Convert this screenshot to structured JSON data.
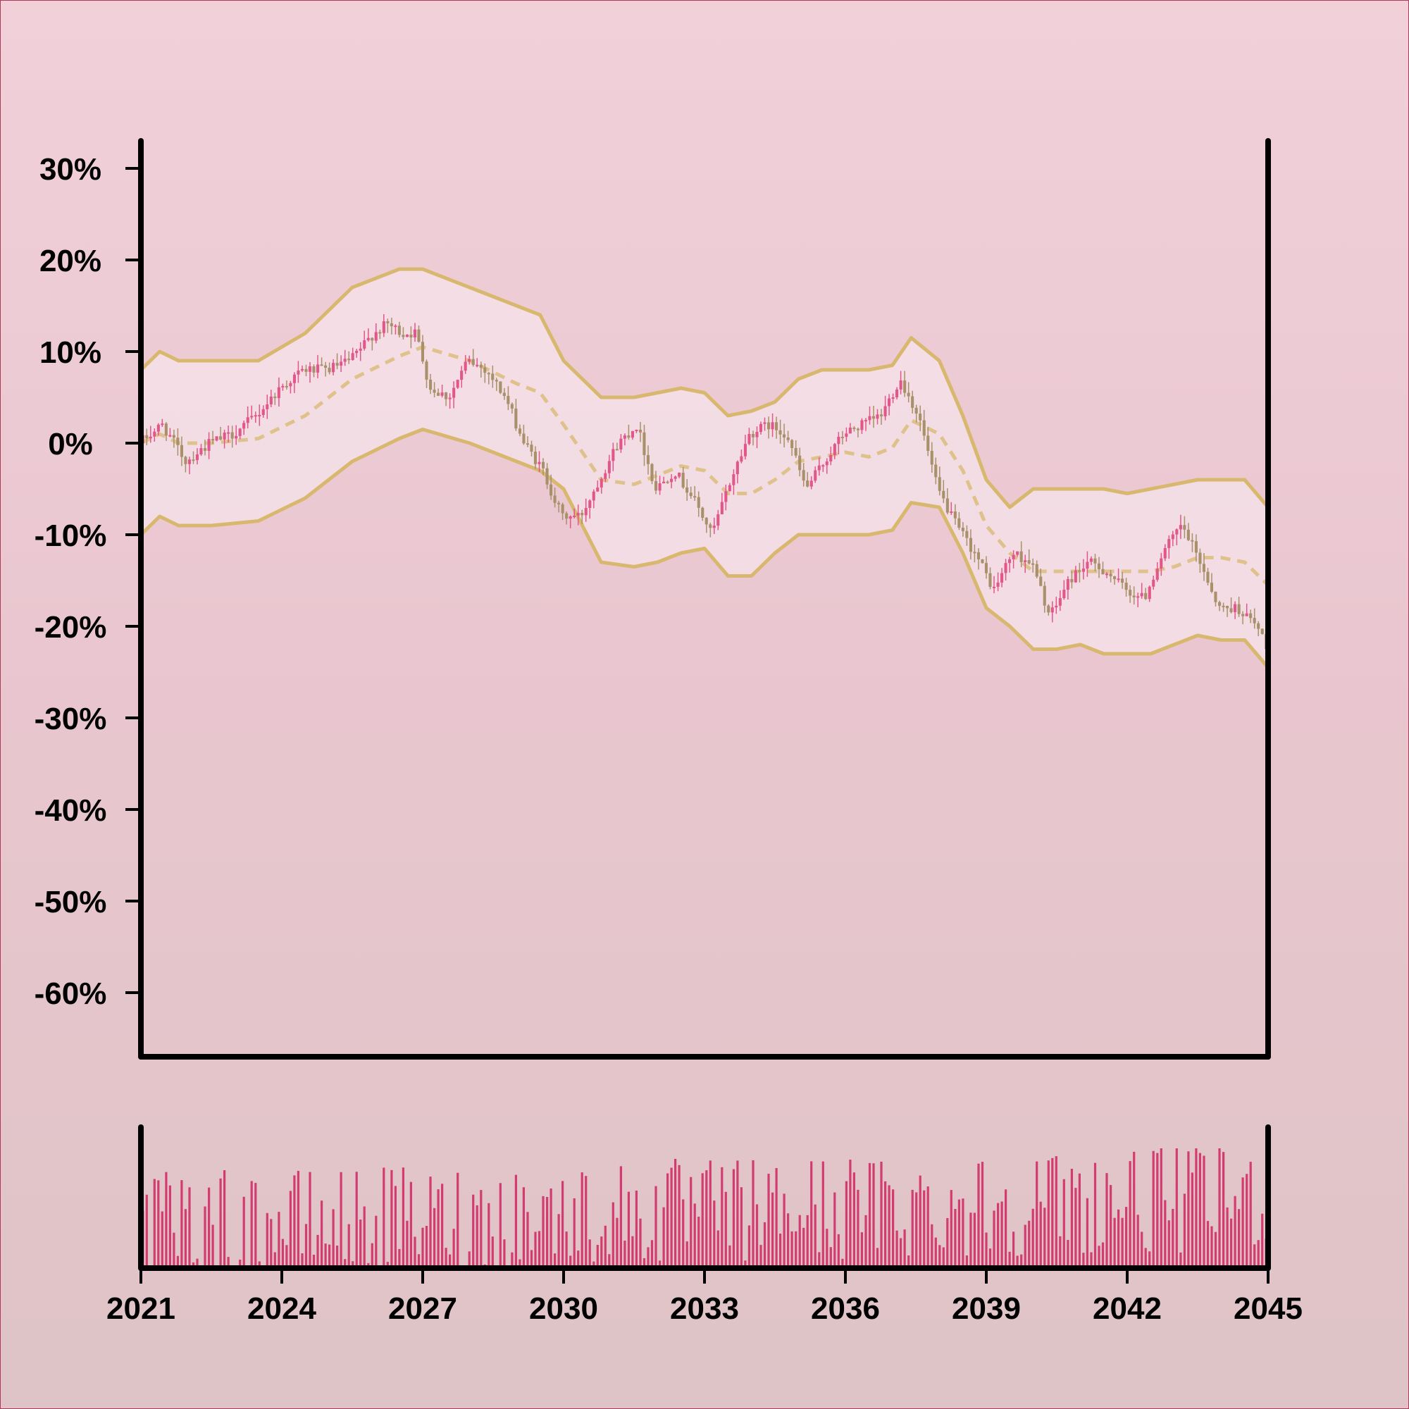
{
  "chart_data": {
    "type": "candlestick",
    "title": "",
    "xlabel": "",
    "ylabel": "",
    "x_range": [
      2021,
      2045
    ],
    "ylim": [
      -0.67,
      0.33
    ],
    "y_ticks": [
      0.3,
      0.2,
      0.1,
      0.0,
      -0.1,
      -0.2,
      -0.3,
      -0.4,
      -0.5,
      -0.6
    ],
    "y_tick_labels": [
      "30%",
      "20%",
      "10%",
      "0%",
      "-10%",
      "-20%",
      "-30%",
      "-40%",
      "-50%",
      "-60%"
    ],
    "x_ticks": [
      2021,
      2024,
      2027,
      2030,
      2033,
      2036,
      2039,
      2042,
      2045
    ],
    "x_tick_labels": [
      "2021",
      "2024",
      "2027",
      "2030",
      "2033",
      "2036",
      "2039",
      "2042",
      "2045"
    ],
    "grid": false,
    "close_path": {
      "x": [
        2021.0,
        2021.5,
        2022.0,
        2022.5,
        2023.0,
        2023.5,
        2024.0,
        2024.5,
        2025.0,
        2025.5,
        2026.0,
        2026.3,
        2026.6,
        2026.9,
        2027.2,
        2027.6,
        2028.0,
        2028.4,
        2028.8,
        2029.2,
        2029.6,
        2030.0,
        2030.4,
        2030.8,
        2031.2,
        2031.6,
        2032.0,
        2032.4,
        2032.8,
        2033.2,
        2033.6,
        2034.0,
        2034.4,
        2034.8,
        2035.2,
        2035.6,
        2036.0,
        2036.4,
        2036.8,
        2037.2,
        2037.6,
        2038.0,
        2038.4,
        2038.8,
        2039.2,
        2039.6,
        2040.0,
        2040.4,
        2040.8,
        2041.2,
        2041.6,
        2042.0,
        2042.4,
        2042.8,
        2043.2,
        2043.6,
        2044.0,
        2044.4,
        2044.8,
        2045.0
      ],
      "y": [
        0.0,
        0.02,
        -0.02,
        0.0,
        0.01,
        0.03,
        0.06,
        0.08,
        0.08,
        0.09,
        0.12,
        0.13,
        0.12,
        0.12,
        0.06,
        0.05,
        0.09,
        0.08,
        0.05,
        0.0,
        -0.03,
        -0.08,
        -0.08,
        -0.04,
        0.0,
        0.02,
        -0.05,
        -0.03,
        -0.06,
        -0.1,
        -0.04,
        0.01,
        0.02,
        0.01,
        -0.05,
        -0.02,
        0.01,
        0.02,
        0.03,
        0.07,
        0.03,
        -0.05,
        -0.09,
        -0.12,
        -0.16,
        -0.12,
        -0.13,
        -0.19,
        -0.15,
        -0.13,
        -0.14,
        -0.16,
        -0.17,
        -0.12,
        -0.09,
        -0.13,
        -0.18,
        -0.18,
        -0.2,
        -0.22
      ]
    },
    "bands": {
      "x": [
        2021.0,
        2021.4,
        2021.8,
        2022.5,
        2023.5,
        2024.5,
        2025.5,
        2026.5,
        2027.0,
        2028.0,
        2029.0,
        2029.5,
        2030.0,
        2030.8,
        2031.5,
        2032.0,
        2032.5,
        2033.0,
        2033.5,
        2034.0,
        2034.5,
        2035.0,
        2035.5,
        2036.0,
        2036.5,
        2037.0,
        2037.4,
        2038.0,
        2038.5,
        2039.0,
        2039.5,
        2040.0,
        2040.5,
        2041.0,
        2041.5,
        2042.0,
        2042.5,
        2043.0,
        2043.5,
        2044.0,
        2044.5,
        2045.0
      ],
      "upper": [
        0.08,
        0.1,
        0.09,
        0.09,
        0.09,
        0.12,
        0.17,
        0.19,
        0.19,
        0.17,
        0.15,
        0.14,
        0.09,
        0.05,
        0.05,
        0.055,
        0.06,
        0.055,
        0.03,
        0.035,
        0.045,
        0.07,
        0.08,
        0.08,
        0.08,
        0.085,
        0.115,
        0.09,
        0.03,
        -0.04,
        -0.07,
        -0.05,
        -0.05,
        -0.05,
        -0.05,
        -0.055,
        -0.05,
        -0.045,
        -0.04,
        -0.04,
        -0.04,
        -0.07
      ],
      "middle": [
        0.0,
        0.01,
        0.0,
        0.0,
        0.005,
        0.03,
        0.07,
        0.095,
        0.105,
        0.09,
        0.065,
        0.055,
        0.02,
        -0.04,
        -0.045,
        -0.035,
        -0.025,
        -0.03,
        -0.055,
        -0.055,
        -0.04,
        -0.02,
        -0.015,
        -0.01,
        -0.015,
        -0.005,
        0.025,
        0.01,
        -0.03,
        -0.09,
        -0.12,
        -0.14,
        -0.14,
        -0.14,
        -0.14,
        -0.14,
        -0.14,
        -0.135,
        -0.125,
        -0.125,
        -0.13,
        -0.155
      ],
      "lower": [
        -0.1,
        -0.08,
        -0.09,
        -0.09,
        -0.085,
        -0.06,
        -0.02,
        0.005,
        0.015,
        0.0,
        -0.02,
        -0.03,
        -0.05,
        -0.13,
        -0.135,
        -0.13,
        -0.12,
        -0.115,
        -0.145,
        -0.145,
        -0.12,
        -0.1,
        -0.1,
        -0.1,
        -0.1,
        -0.095,
        -0.065,
        -0.07,
        -0.12,
        -0.18,
        -0.2,
        -0.225,
        -0.225,
        -0.22,
        -0.23,
        -0.23,
        -0.23,
        -0.22,
        -0.21,
        -0.215,
        -0.215,
        -0.245
      ]
    },
    "colors": {
      "up": "#e3568a",
      "down": "#a8906a",
      "band": "#d8b86e",
      "band_fill": "#f6e3ea",
      "volume": "#d23c70",
      "axis": "#000000"
    }
  }
}
